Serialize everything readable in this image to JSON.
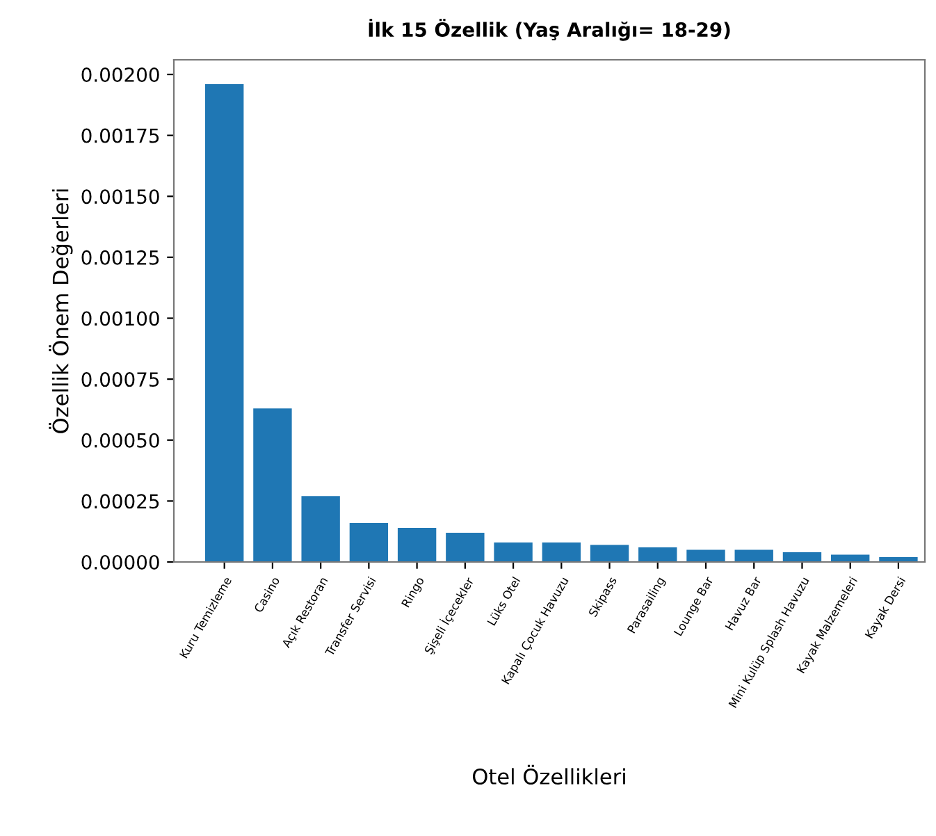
{
  "chart_data": {
    "type": "bar",
    "title": "İlk 15 Özellik (Yaş Aralığı= 18-29)",
    "xlabel": "Otel Özellikleri",
    "ylabel": "Özellik Önem Değerleri",
    "categories": [
      "Kuru Temizleme",
      "Casino",
      "Açık Restoran",
      "Transfer Servisi",
      "Ringo",
      "Şişeli İçecekler",
      "Lüks Otel",
      "Kapalı Çocuk Havuzu",
      "Skipass",
      "Parasailing",
      "Lounge Bar",
      "Havuz Bar",
      "Mini Kulüp Splash Havuzu",
      "Kayak Malzemeleri",
      "Kayak Dersi"
    ],
    "values": [
      0.00196,
      0.00063,
      0.00027,
      0.00016,
      0.00014,
      0.00012,
      8e-05,
      8e-05,
      7e-05,
      6e-05,
      5e-05,
      5e-05,
      4e-05,
      3e-05,
      2e-05
    ],
    "color": "#1f77b4",
    "ylim": [
      0,
      0.00206
    ],
    "yticks": [
      {
        "value": 0,
        "label": "0.00000"
      },
      {
        "value": 0.00025,
        "label": "0.00025"
      },
      {
        "value": 0.0005,
        "label": "0.00050"
      },
      {
        "value": 0.00075,
        "label": "0.00075"
      },
      {
        "value": 0.001,
        "label": "0.00100"
      },
      {
        "value": 0.00125,
        "label": "0.00125"
      },
      {
        "value": 0.0015,
        "label": "0.00150"
      },
      {
        "value": 0.00175,
        "label": "0.00175"
      },
      {
        "value": 0.002,
        "label": "0.00200"
      }
    ],
    "grid": false
  }
}
